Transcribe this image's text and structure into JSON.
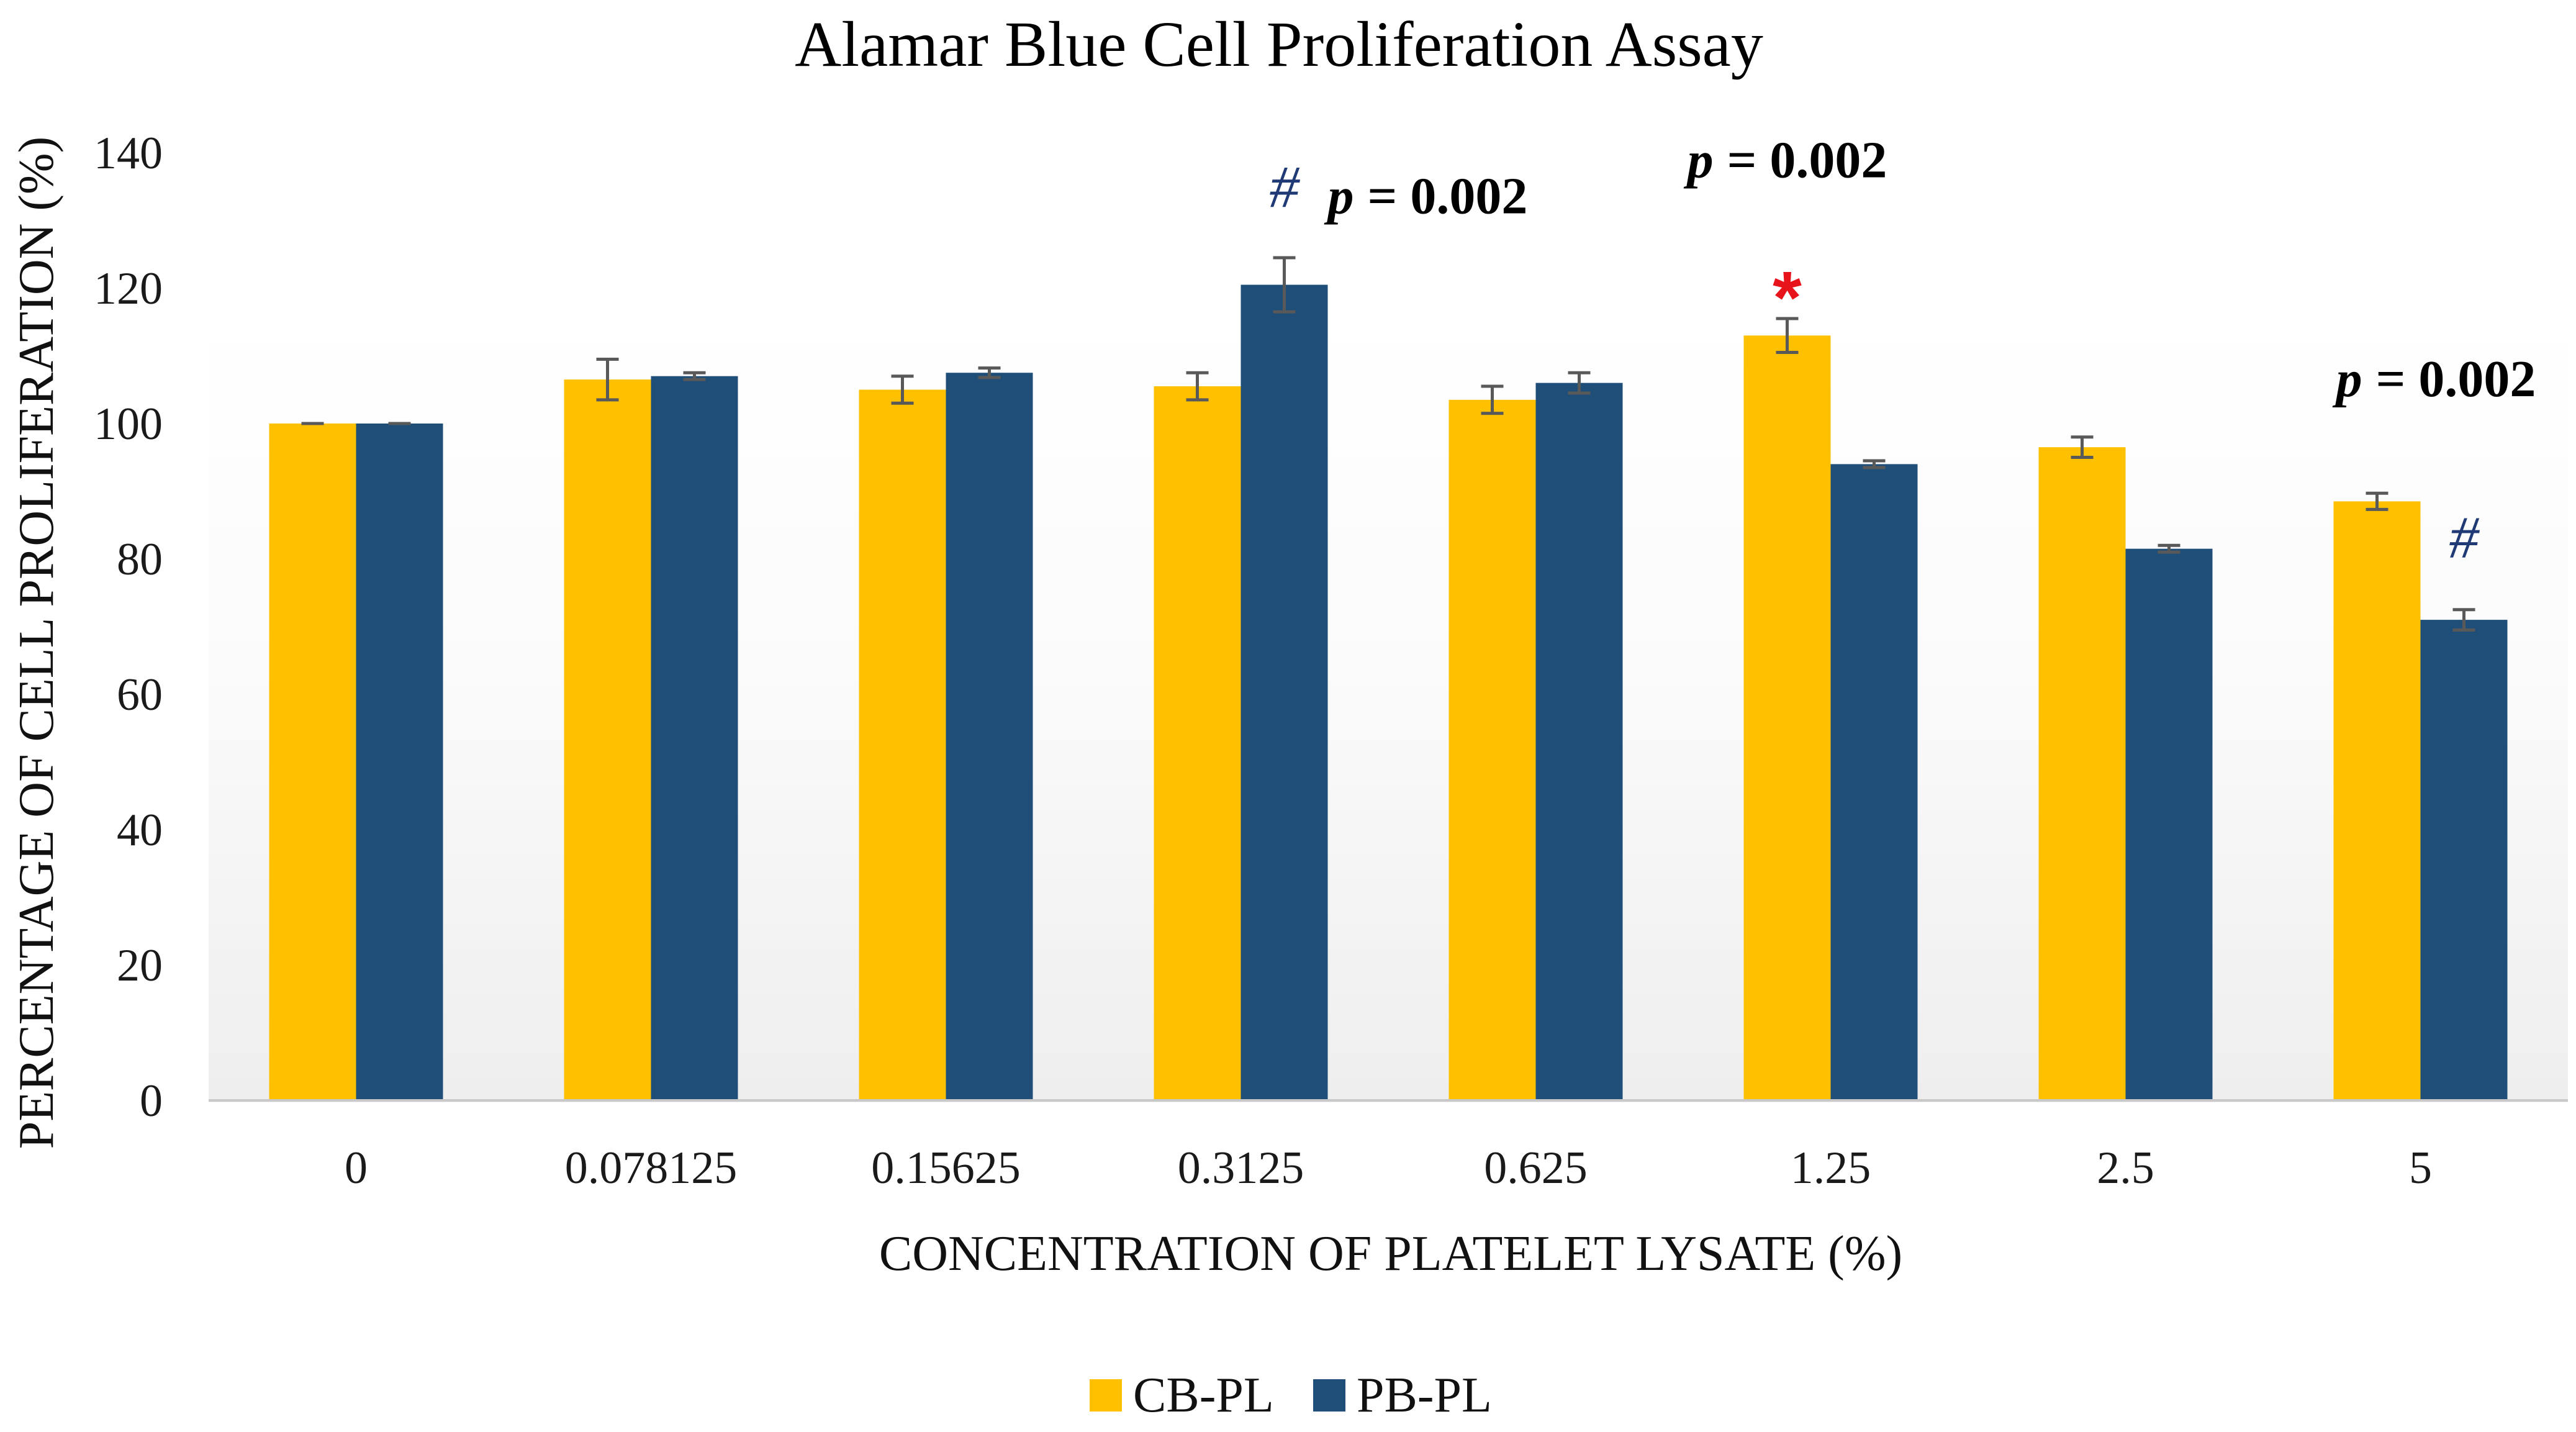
{
  "chart_data": {
    "type": "bar",
    "title": "Alamar Blue Cell Proliferation Assay",
    "xlabel": "CONCENTRATION OF PLATELET LYSATE (%)",
    "ylabel": "PERCENTAGE OF CELL PROLIFERATION (%)",
    "ylim": [
      0,
      140
    ],
    "yticks": [
      0,
      20,
      40,
      60,
      80,
      100,
      120,
      140
    ],
    "categories": [
      "0",
      "0.078125",
      "0.15625",
      "0.3125",
      "0.625",
      "1.25",
      "2.5",
      "5"
    ],
    "series": [
      {
        "name": "CB-PL",
        "color": "#FFC000",
        "values": [
          100,
          106.5,
          105,
          105.5,
          103.5,
          113,
          96.5,
          88.5
        ],
        "errors": [
          0,
          3,
          2,
          2,
          2,
          2.5,
          1.5,
          1.2
        ]
      },
      {
        "name": "PB-PL",
        "color": "#1F4E79",
        "values": [
          100,
          107,
          107.5,
          120.5,
          106,
          94,
          81.5,
          71
        ],
        "errors": [
          0,
          0.5,
          0.7,
          4,
          1.5,
          0.5,
          0.5,
          1.5
        ]
      }
    ],
    "legend_position": "bottom-center",
    "annotations": [
      {
        "category_index": 3,
        "series_index": 1,
        "marker": "#",
        "marker_color": "#1F3A75",
        "p_label": "p",
        "p_value": "= 0.002"
      },
      {
        "category_index": 5,
        "series_index": 0,
        "marker": "*",
        "marker_color": "#E8141B",
        "p_label": "p",
        "p_value": "= 0.002"
      },
      {
        "category_index": 7,
        "series_index": 1,
        "marker": "#",
        "marker_color": "#1F3A75",
        "p_label": "p",
        "p_value": "= 0.002"
      }
    ]
  }
}
